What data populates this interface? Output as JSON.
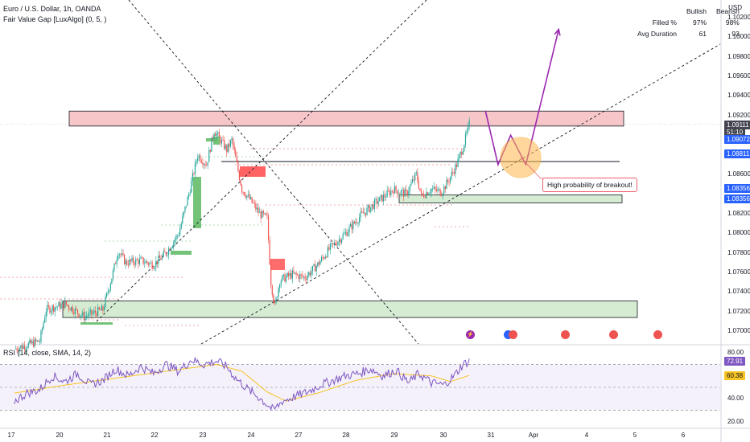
{
  "header": {
    "title": "Euro / U.S. Dollar, 1h, OANDA",
    "indicator": "Fair Value Gap [LuxAlgo] (0, 5, )"
  },
  "stats": {
    "col_bullish": "Bullish",
    "col_bearish": "Bearish",
    "rows": [
      {
        "label": "Filled %",
        "bullish": "97%",
        "bearish": "98%"
      },
      {
        "label": "Avg Duration",
        "bullish": "61",
        "bearish": "93"
      }
    ]
  },
  "currency": "USD",
  "annotation": "High probability of breakout!",
  "rsi_label": "RSI (14, close, SMA, 14, 2)",
  "price_tags": [
    {
      "text": "1.09111",
      "bg": "#434651",
      "fg": "#ffffff",
      "y": 1.09111
    },
    {
      "text": "51:10",
      "bg": "#434651",
      "fg": "#ffffff",
      "y": 1.09035
    },
    {
      "text": "1.09072",
      "bg": "#2962ff",
      "fg": "#ffffff",
      "y": 1.08965
    },
    {
      "text": "1.08811",
      "bg": "#2962ff",
      "fg": "#ffffff",
      "y": 1.08811
    },
    {
      "text": "1.08356",
      "bg": "#2962ff",
      "fg": "#ffffff",
      "y": 1.0846
    },
    {
      "text": "1.08356",
      "bg": "#2962ff",
      "fg": "#ffffff",
      "y": 1.08356
    }
  ],
  "rsi_tags": [
    {
      "text": "72.91",
      "bg": "#7e57c2",
      "fg": "#ffffff",
      "y": 72.91
    },
    {
      "text": "60.38",
      "bg": "#f7c325",
      "fg": "#131722",
      "y": 60.38
    }
  ],
  "colors": {
    "bull": "#26a69a",
    "bear": "#ef5350",
    "resistance_fill": "#f7c6c9",
    "support_fill": "#d6ecd2",
    "forecast": "#9c27b0",
    "rsi": "#7e57c2",
    "rsi_ma": "#f7c325"
  },
  "chart_data": [
    {
      "type": "candlestick",
      "series_name": "EURUSD",
      "y_ticks": [
        "1.10200",
        "1.10000",
        "1.09800",
        "1.09600",
        "1.09400",
        "1.09200",
        "1.08600",
        "1.08200",
        "1.08000",
        "1.07800",
        "1.07600",
        "1.07400",
        "1.07200",
        "1.07000"
      ],
      "ylim": [
        1.0687,
        1.1038
      ],
      "x_ticks": [
        "17",
        "20",
        "21",
        "22",
        "23",
        "24",
        "27",
        "28",
        "29",
        "30",
        "31",
        "Apr",
        "4",
        "5",
        "6"
      ],
      "price_path": [
        [
          0,
          1.0682
        ],
        [
          20,
          1.069
        ],
        [
          25,
          1.0722
        ],
        [
          40,
          1.0728
        ],
        [
          55,
          1.0715
        ],
        [
          70,
          1.0722
        ],
        [
          78,
          1.076
        ],
        [
          82,
          1.0782
        ],
        [
          88,
          1.077
        ],
        [
          100,
          1.0772
        ],
        [
          110,
          1.0768
        ],
        [
          120,
          1.078
        ],
        [
          130,
          1.08
        ],
        [
          138,
          1.084
        ],
        [
          145,
          1.088
        ],
        [
          152,
          1.087
        ],
        [
          158,
          1.0905
        ],
        [
          163,
          1.0895
        ],
        [
          168,
          1.0885
        ],
        [
          172,
          1.0895
        ],
        [
          176,
          1.087
        ],
        [
          180,
          1.0845
        ],
        [
          186,
          1.0835
        ],
        [
          194,
          1.082
        ],
        [
          200,
          1.0815
        ],
        [
          203,
          1.075
        ],
        [
          206,
          1.0725
        ],
        [
          210,
          1.0752
        ],
        [
          220,
          1.0758
        ],
        [
          230,
          1.0755
        ],
        [
          240,
          1.0768
        ],
        [
          250,
          1.0785
        ],
        [
          262,
          1.08
        ],
        [
          274,
          1.0818
        ],
        [
          285,
          1.083
        ],
        [
          300,
          1.0845
        ],
        [
          310,
          1.084
        ],
        [
          318,
          1.086
        ],
        [
          322,
          1.0838
        ],
        [
          330,
          1.0845
        ],
        [
          338,
          1.0842
        ],
        [
          344,
          1.0855
        ],
        [
          350,
          1.087
        ],
        [
          355,
          1.0888
        ],
        [
          360,
          1.0911
        ]
      ],
      "ranges": {
        "resistance_zone": [
          1.0911,
          1.0923
        ],
        "support_zone_1": [
          1.0831,
          1.0839
        ],
        "support_zone_2": [
          1.0714,
          1.0731
        ]
      },
      "forecast_path": [
        [
          360,
          1.0925
        ],
        [
          370,
          1.087
        ],
        [
          380,
          1.09
        ],
        [
          392,
          1.087
        ],
        [
          418,
          1.1008
        ]
      ]
    },
    {
      "type": "line",
      "series_name": "RSI",
      "y_ticks": [
        "80.00",
        "40.00",
        "20.00"
      ],
      "ylim": [
        15,
        85
      ],
      "overbought": 70,
      "oversold": 30,
      "rsi_path": [
        [
          0,
          38
        ],
        [
          10,
          45
        ],
        [
          20,
          48
        ],
        [
          30,
          60
        ],
        [
          40,
          55
        ],
        [
          50,
          62
        ],
        [
          60,
          52
        ],
        [
          70,
          56
        ],
        [
          80,
          66
        ],
        [
          90,
          60
        ],
        [
          100,
          68
        ],
        [
          110,
          62
        ],
        [
          120,
          70
        ],
        [
          130,
          64
        ],
        [
          140,
          74
        ],
        [
          150,
          70
        ],
        [
          160,
          73
        ],
        [
          168,
          68
        ],
        [
          175,
          58
        ],
        [
          185,
          48
        ],
        [
          195,
          40
        ],
        [
          205,
          30
        ],
        [
          212,
          38
        ],
        [
          222,
          42
        ],
        [
          232,
          46
        ],
        [
          242,
          52
        ],
        [
          252,
          56
        ],
        [
          262,
          60
        ],
        [
          272,
          62
        ],
        [
          282,
          66
        ],
        [
          292,
          60
        ],
        [
          302,
          65
        ],
        [
          312,
          54
        ],
        [
          320,
          62
        ],
        [
          330,
          54
        ],
        [
          340,
          52
        ],
        [
          348,
          60
        ],
        [
          355,
          70
        ],
        [
          360,
          72.91
        ]
      ],
      "ma_path": [
        [
          0,
          45
        ],
        [
          40,
          52
        ],
        [
          80,
          58
        ],
        [
          120,
          64
        ],
        [
          160,
          70
        ],
        [
          180,
          64
        ],
        [
          200,
          46
        ],
        [
          215,
          38
        ],
        [
          240,
          45
        ],
        [
          270,
          56
        ],
        [
          300,
          62
        ],
        [
          330,
          60
        ],
        [
          345,
          55
        ],
        [
          360,
          60.38
        ]
      ]
    }
  ]
}
